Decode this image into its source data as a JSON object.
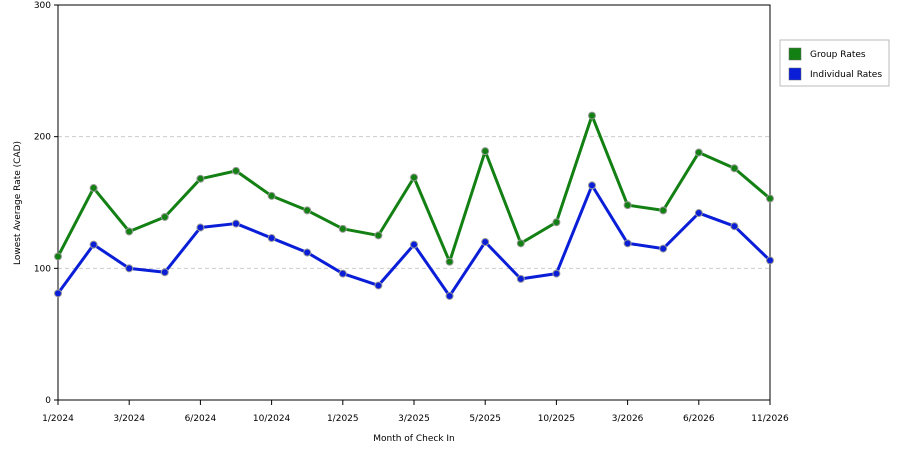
{
  "chart_data": {
    "type": "line",
    "x_label": "Month of Check In",
    "y_label": "Lowest Average Rate (CAD)",
    "categories": [
      "1/2024",
      null,
      "3/2024",
      null,
      "6/2024",
      null,
      "10/2024",
      null,
      "1/2025",
      null,
      "3/2025",
      null,
      "5/2025",
      null,
      "10/2025",
      null,
      "3/2026",
      null,
      "6/2026",
      null,
      "11/2026"
    ],
    "series": [
      {
        "name": "Group Rates",
        "color": "#138013",
        "values": [
          109,
          161,
          128,
          139,
          168,
          174,
          155,
          144,
          130,
          125,
          169,
          105,
          189,
          119,
          135,
          216,
          148,
          144,
          188,
          176,
          153
        ]
      },
      {
        "name": "Individual Rates",
        "color": "#0a1ed8",
        "values": [
          81,
          118,
          100,
          97,
          131,
          134,
          123,
          112,
          96,
          87,
          118,
          79,
          120,
          92,
          96,
          163,
          119,
          115,
          142,
          132,
          106
        ]
      }
    ],
    "ylim": [
      0,
      300
    ],
    "yticks": [
      0,
      100,
      200,
      300
    ],
    "grid": true,
    "legend": "right"
  }
}
